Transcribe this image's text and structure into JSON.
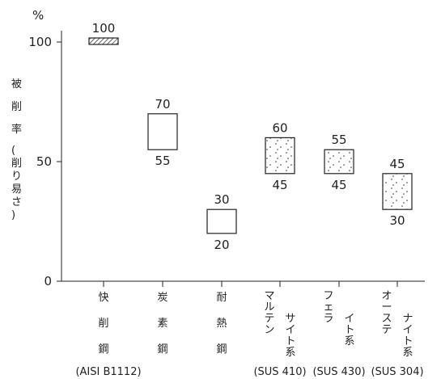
{
  "chart_data": {
    "type": "range-bar",
    "y_unit": "%",
    "ylabel": "被削率(削り易さ)",
    "ylim": [
      0,
      100
    ],
    "yticks": [
      0,
      50,
      100
    ],
    "grid": false,
    "legend": "none",
    "categories": [
      {
        "label": "快削鋼",
        "sub": "(AISI B1112)",
        "low": 100,
        "high": 100,
        "style": "hatched"
      },
      {
        "label": "炭素鋼",
        "sub": "",
        "low": 55,
        "high": 70,
        "style": "empty"
      },
      {
        "label": "耐熱鋼",
        "sub": "",
        "low": 20,
        "high": 30,
        "style": "empty"
      },
      {
        "label": "マルテンサイト系",
        "sub": "(SUS 410)",
        "low": 45,
        "high": 60,
        "style": "dotted"
      },
      {
        "label": "フェライト系",
        "sub": "(SUS 430)",
        "low": 45,
        "high": 55,
        "style": "dotted"
      },
      {
        "label": "オーステナイト系",
        "sub": "(SUS 304)",
        "low": 30,
        "high": 45,
        "style": "dotted"
      }
    ]
  }
}
